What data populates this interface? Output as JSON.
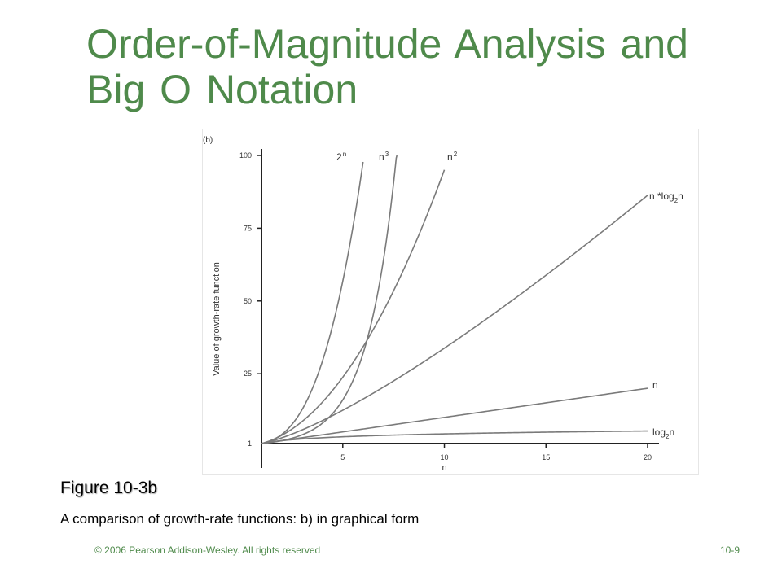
{
  "slide": {
    "title": "Order-of-Magnitude Analysis and Big O Notation",
    "caption_title": "Figure 10-3b",
    "caption_text": "A comparison of growth-rate functions: b) in graphical form",
    "footer_left": "© 2006 Pearson Addison-Wesley. All rights reserved",
    "footer_right": "10-9"
  },
  "colors": {
    "title": "#4f8a4b",
    "curve": "#7a7a7a",
    "axis": "#222222"
  },
  "chart_data": {
    "type": "line",
    "panel_label": "(b)",
    "xlabel": "n",
    "ylabel": "Value of growth-rate function",
    "xlim": [
      1,
      20
    ],
    "ylim": [
      1,
      100
    ],
    "x_ticks": [
      5,
      10,
      15,
      20
    ],
    "y_ticks": [
      1,
      25,
      50,
      75,
      100
    ],
    "grid": false,
    "series": [
      {
        "name": "2",
        "sup": "n",
        "fn": "pow2"
      },
      {
        "name": "n",
        "sup": "3",
        "fn": "cube"
      },
      {
        "name": "n",
        "sup": "2",
        "fn": "square"
      },
      {
        "name": "n *log",
        "sub": "2",
        "tail": "n",
        "fn": "nlogn"
      },
      {
        "name": "n",
        "fn": "linear"
      },
      {
        "name": "log",
        "sub": "2",
        "tail": "n",
        "fn": "log2"
      }
    ]
  }
}
